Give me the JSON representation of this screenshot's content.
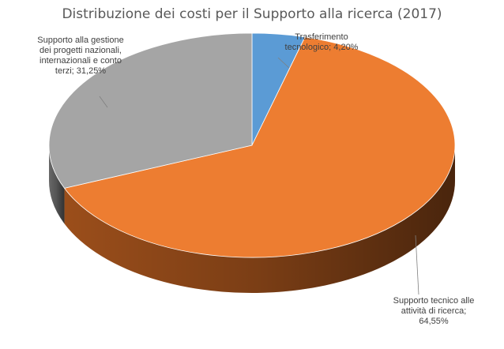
{
  "chart_data": {
    "type": "pie",
    "title": "Distribuzione dei costi per il Supporto alla ricerca (2017)",
    "slices": [
      {
        "label": "Trasferimento tecnologico",
        "value": 4.2,
        "display": "4,20%",
        "color": "#5b9bd5",
        "side_color": "#3a6fa0"
      },
      {
        "label": "Supporto tecnico alle attività di ricerca",
        "value": 64.55,
        "display": "64,55%",
        "color": "#ed7d31",
        "side_color": "#a3521c"
      },
      {
        "label": "Supporto alla gestione dei progetti nazionali, internazionali e conto terzi",
        "value": 31.25,
        "display": "31,25%",
        "color": "#a5a5a5",
        "side_color": "#6e6e6e"
      }
    ],
    "data_labels": [
      {
        "lines": [
          "Trasferimento",
          "tecnologico; 4,20%"
        ]
      },
      {
        "lines": [
          "Supporto tecnico alle",
          "attività di ricerca;",
          "64,55%"
        ]
      },
      {
        "lines": [
          "Supporto alla gestione",
          "dei progetti nazionali,",
          "internazionali e conto",
          "terzi; 31,25%"
        ]
      }
    ],
    "legend": "none"
  }
}
